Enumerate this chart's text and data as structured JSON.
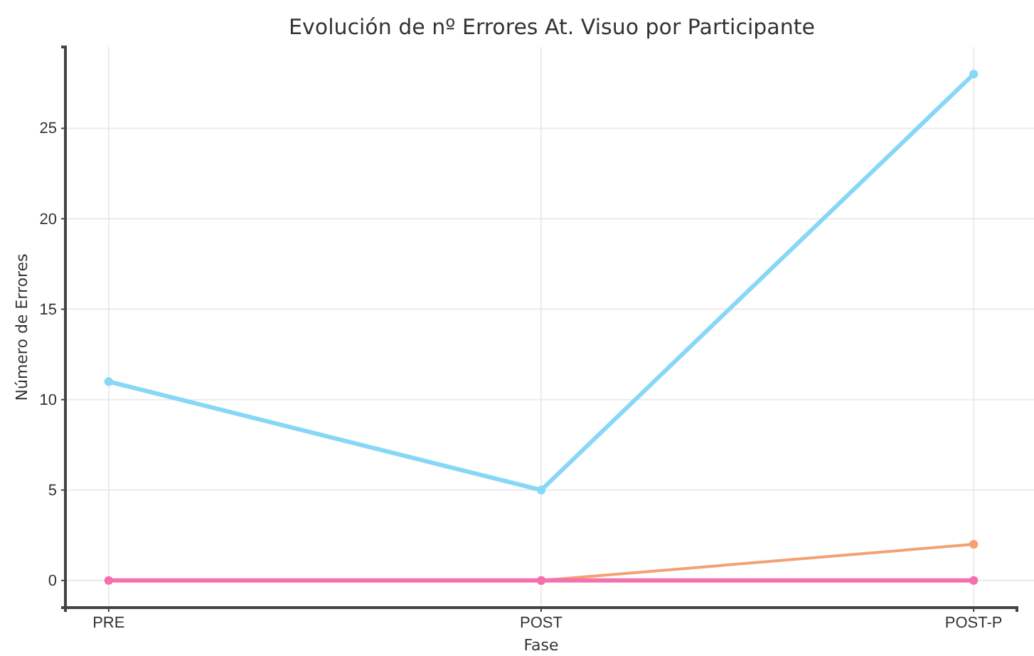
{
  "chart_data": {
    "type": "line",
    "title": "Evolución de nº Errores At. Visuo por Participante",
    "xlabel": "Fase",
    "ylabel": "Número de Errores",
    "categories": [
      "PRE",
      "POST",
      "POST-P"
    ],
    "series": [
      {
        "color": "#87d7f7",
        "values": [
          11,
          5,
          28
        ]
      },
      {
        "color": "#f4a074",
        "values": [
          null,
          0,
          2
        ]
      },
      {
        "color": "#f66fae",
        "values": [
          0,
          0,
          0
        ]
      }
    ],
    "ylim": [
      -1.5,
      29.5
    ],
    "yticks": [
      0,
      5,
      10,
      15,
      20,
      25
    ],
    "grid": true,
    "marker": "circle",
    "line_style": "solid"
  }
}
